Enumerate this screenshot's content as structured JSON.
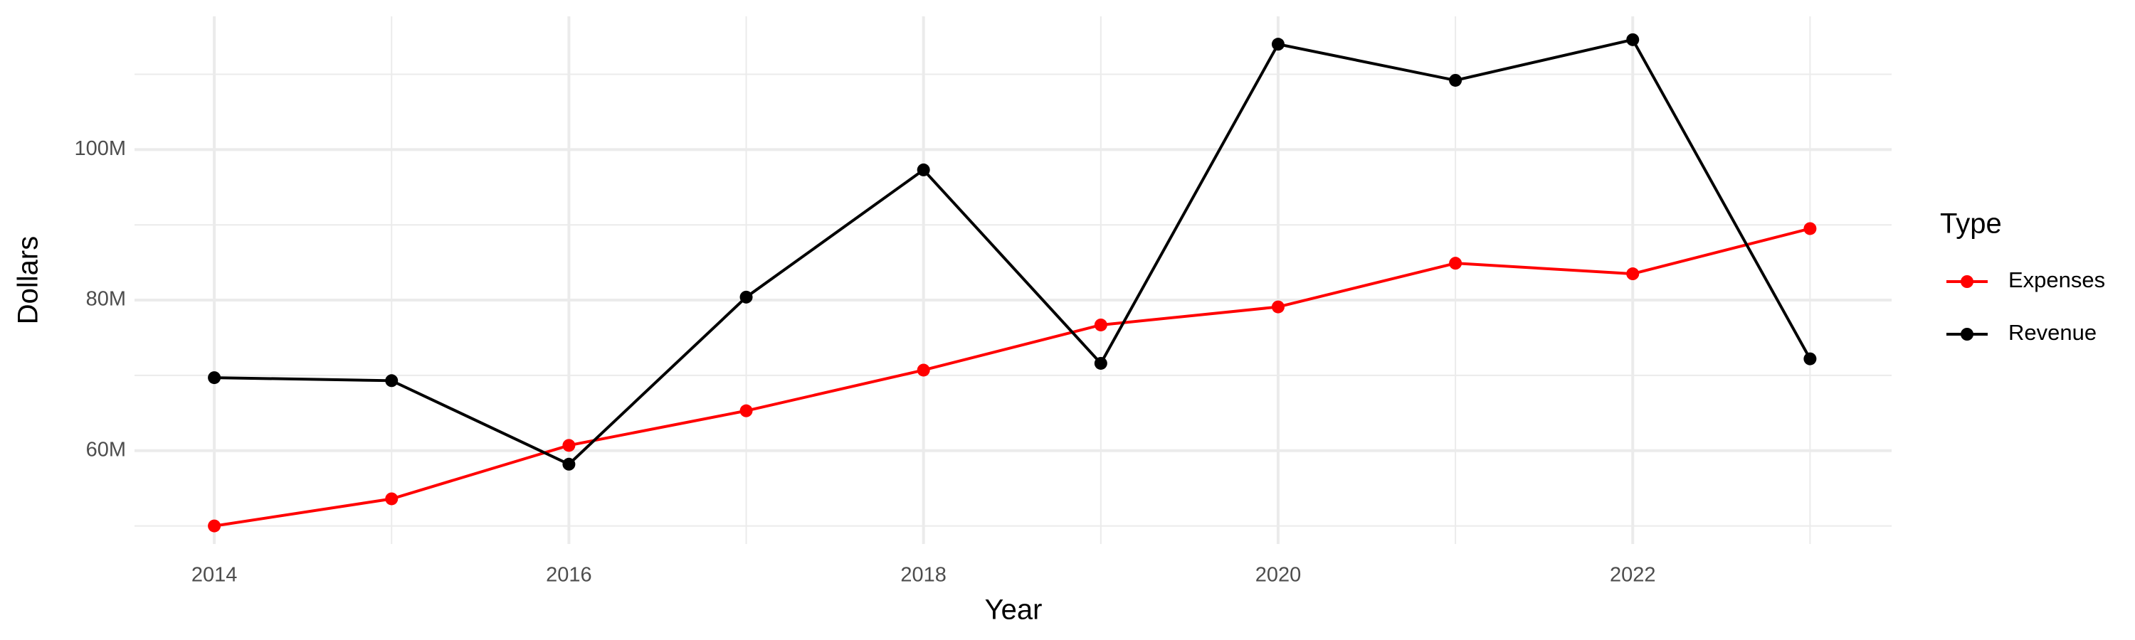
{
  "chart_data": {
    "type": "line",
    "x_label": "Year",
    "y_label": "Dollars",
    "legend_title": "Type",
    "x": [
      2014,
      2015,
      2016,
      2017,
      2018,
      2019,
      2020,
      2021,
      2022,
      2023
    ],
    "series": [
      {
        "name": "Expenses",
        "color": "#ff0000",
        "values": [
          50000000,
          53600000,
          60700000,
          65300000,
          70700000,
          76700000,
          79100000,
          84900000,
          83500000,
          89500000
        ]
      },
      {
        "name": "Revenue",
        "color": "#000000",
        "values": [
          69700000,
          69300000,
          58200000,
          80400000,
          97300000,
          71600000,
          114000000,
          109200000,
          114600000,
          72200000
        ]
      }
    ],
    "xlim": [
      2013.55,
      2023.46
    ],
    "xticks": [
      2014,
      2016,
      2018,
      2020,
      2022
    ],
    "x_minor_ticks": [
      2015,
      2017,
      2019,
      2021,
      2023
    ],
    "ylim": [
      47600000,
      117700000
    ],
    "yticks": [
      {
        "value": 60000000,
        "label": "60M"
      },
      {
        "value": 80000000,
        "label": "80M"
      },
      {
        "value": 100000000,
        "label": "100M"
      }
    ],
    "y_minor_ticks": [
      50000000,
      70000000,
      90000000,
      110000000
    ],
    "grid": true,
    "legend_position": "right"
  }
}
